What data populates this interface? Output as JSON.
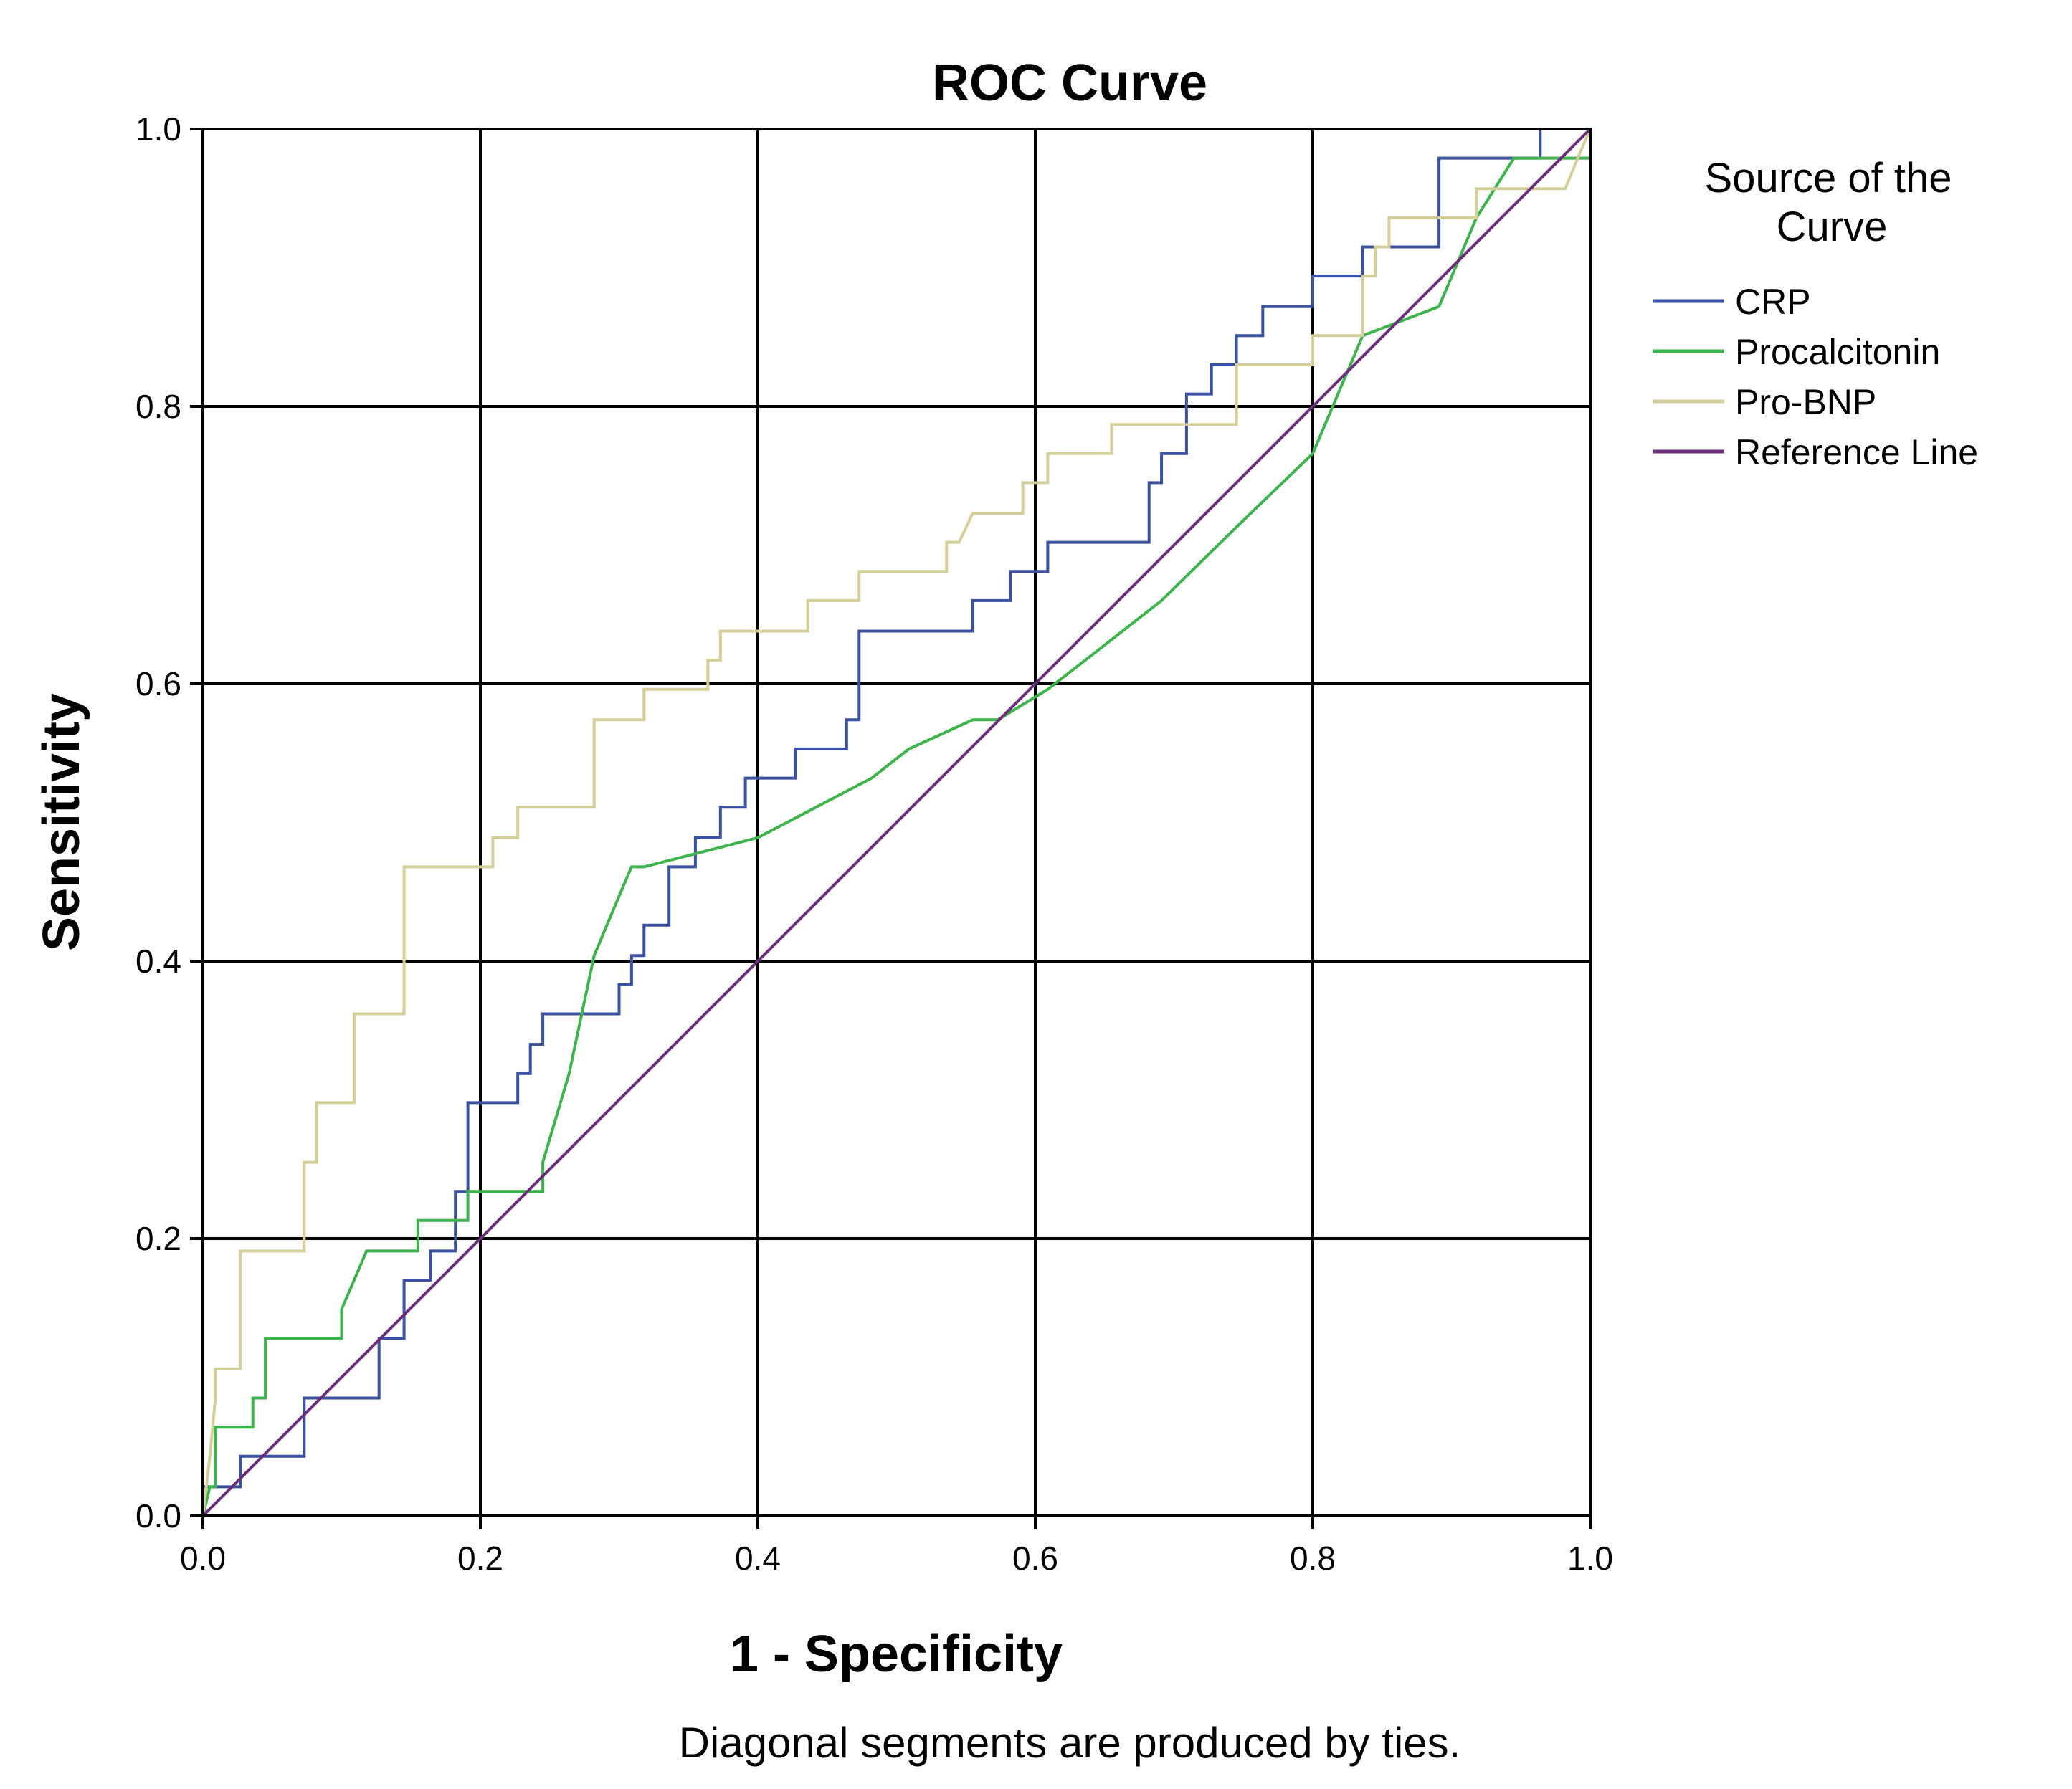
{
  "chart_data": {
    "type": "line",
    "title": "ROC Curve",
    "xlabel": "1 - Specificity",
    "ylabel": "Sensitivity",
    "xlim": [
      0.0,
      1.0
    ],
    "ylim": [
      0.0,
      1.0
    ],
    "xticks": [
      "0.0",
      "0.2",
      "0.4",
      "0.6",
      "0.8",
      "1.0"
    ],
    "yticks": [
      "0.0",
      "0.2",
      "0.4",
      "0.6",
      "0.8",
      "1.0"
    ],
    "grid": true,
    "legend": {
      "title": "Source of the Curve",
      "placement": "right"
    },
    "footnote": "Diagonal segments are produced by ties.",
    "series": [
      {
        "name": "CRP",
        "color": "#3b52a3",
        "points": [
          [
            0,
            0
          ],
          [
            0,
            0.021
          ],
          [
            0.027,
            0.021
          ],
          [
            0.027,
            0.043
          ],
          [
            0.073,
            0.043
          ],
          [
            0.073,
            0.085
          ],
          [
            0.127,
            0.085
          ],
          [
            0.127,
            0.128
          ],
          [
            0.145,
            0.128
          ],
          [
            0.145,
            0.17
          ],
          [
            0.164,
            0.17
          ],
          [
            0.164,
            0.191
          ],
          [
            0.182,
            0.191
          ],
          [
            0.182,
            0.234
          ],
          [
            0.191,
            0.234
          ],
          [
            0.191,
            0.298
          ],
          [
            0.227,
            0.298
          ],
          [
            0.227,
            0.319
          ],
          [
            0.236,
            0.319
          ],
          [
            0.236,
            0.34
          ],
          [
            0.245,
            0.34
          ],
          [
            0.245,
            0.362
          ],
          [
            0.3,
            0.362
          ],
          [
            0.3,
            0.383
          ],
          [
            0.309,
            0.383
          ],
          [
            0.309,
            0.404
          ],
          [
            0.318,
            0.404
          ],
          [
            0.318,
            0.426
          ],
          [
            0.336,
            0.426
          ],
          [
            0.336,
            0.468
          ],
          [
            0.355,
            0.468
          ],
          [
            0.355,
            0.489
          ],
          [
            0.373,
            0.489
          ],
          [
            0.373,
            0.511
          ],
          [
            0.391,
            0.511
          ],
          [
            0.391,
            0.532
          ],
          [
            0.427,
            0.532
          ],
          [
            0.427,
            0.553
          ],
          [
            0.464,
            0.553
          ],
          [
            0.464,
            0.574
          ],
          [
            0.473,
            0.574
          ],
          [
            0.473,
            0.638
          ],
          [
            0.555,
            0.638
          ],
          [
            0.555,
            0.66
          ],
          [
            0.582,
            0.66
          ],
          [
            0.582,
            0.681
          ],
          [
            0.609,
            0.681
          ],
          [
            0.609,
            0.702
          ],
          [
            0.682,
            0.702
          ],
          [
            0.682,
            0.745
          ],
          [
            0.691,
            0.745
          ],
          [
            0.691,
            0.766
          ],
          [
            0.709,
            0.766
          ],
          [
            0.709,
            0.809
          ],
          [
            0.727,
            0.809
          ],
          [
            0.727,
            0.83
          ],
          [
            0.745,
            0.83
          ],
          [
            0.745,
            0.851
          ],
          [
            0.764,
            0.851
          ],
          [
            0.764,
            0.872
          ],
          [
            0.8,
            0.872
          ],
          [
            0.8,
            0.894
          ],
          [
            0.836,
            0.894
          ],
          [
            0.836,
            0.915
          ],
          [
            0.855,
            0.915
          ],
          [
            0.855,
            0.915
          ],
          [
            0.891,
            0.915
          ],
          [
            0.891,
            0.979
          ],
          [
            0.964,
            0.979
          ],
          [
            0.964,
            1.0
          ],
          [
            1.0,
            1.0
          ]
        ]
      },
      {
        "name": "Procalcitonin",
        "color": "#3cb44b",
        "points": [
          [
            0,
            0
          ],
          [
            0.005,
            0.021
          ],
          [
            0.009,
            0.021
          ],
          [
            0.009,
            0.064
          ],
          [
            0.036,
            0.064
          ],
          [
            0.036,
            0.085
          ],
          [
            0.045,
            0.085
          ],
          [
            0.045,
            0.128
          ],
          [
            0.1,
            0.128
          ],
          [
            0.1,
            0.149
          ],
          [
            0.118,
            0.191
          ],
          [
            0.155,
            0.191
          ],
          [
            0.155,
            0.213
          ],
          [
            0.191,
            0.213
          ],
          [
            0.191,
            0.234
          ],
          [
            0.245,
            0.234
          ],
          [
            0.245,
            0.255
          ],
          [
            0.264,
            0.319
          ],
          [
            0.282,
            0.404
          ],
          [
            0.3,
            0.447
          ],
          [
            0.309,
            0.468
          ],
          [
            0.318,
            0.468
          ],
          [
            0.4,
            0.489
          ],
          [
            0.482,
            0.532
          ],
          [
            0.509,
            0.553
          ],
          [
            0.555,
            0.574
          ],
          [
            0.573,
            0.574
          ],
          [
            0.609,
            0.596
          ],
          [
            0.636,
            0.617
          ],
          [
            0.691,
            0.66
          ],
          [
            0.745,
            0.713
          ],
          [
            0.8,
            0.766
          ],
          [
            0.836,
            0.851
          ],
          [
            0.891,
            0.872
          ],
          [
            0.918,
            0.936
          ],
          [
            0.945,
            0.979
          ],
          [
            1.0,
            0.979
          ]
        ]
      },
      {
        "name": "Pro-BNP",
        "color": "#d4cf98",
        "points": [
          [
            0,
            0
          ],
          [
            0.005,
            0.043
          ],
          [
            0.009,
            0.085
          ],
          [
            0.009,
            0.106
          ],
          [
            0.027,
            0.106
          ],
          [
            0.027,
            0.191
          ],
          [
            0.073,
            0.191
          ],
          [
            0.073,
            0.255
          ],
          [
            0.082,
            0.255
          ],
          [
            0.082,
            0.298
          ],
          [
            0.109,
            0.298
          ],
          [
            0.109,
            0.362
          ],
          [
            0.145,
            0.362
          ],
          [
            0.145,
            0.468
          ],
          [
            0.209,
            0.468
          ],
          [
            0.209,
            0.489
          ],
          [
            0.227,
            0.489
          ],
          [
            0.227,
            0.511
          ],
          [
            0.282,
            0.511
          ],
          [
            0.282,
            0.574
          ],
          [
            0.318,
            0.574
          ],
          [
            0.318,
            0.596
          ],
          [
            0.364,
            0.596
          ],
          [
            0.364,
            0.617
          ],
          [
            0.373,
            0.617
          ],
          [
            0.373,
            0.638
          ],
          [
            0.436,
            0.638
          ],
          [
            0.436,
            0.66
          ],
          [
            0.473,
            0.66
          ],
          [
            0.473,
            0.681
          ],
          [
            0.536,
            0.681
          ],
          [
            0.536,
            0.702
          ],
          [
            0.545,
            0.702
          ],
          [
            0.555,
            0.723
          ],
          [
            0.591,
            0.723
          ],
          [
            0.591,
            0.745
          ],
          [
            0.609,
            0.745
          ],
          [
            0.609,
            0.766
          ],
          [
            0.655,
            0.766
          ],
          [
            0.655,
            0.787
          ],
          [
            0.745,
            0.787
          ],
          [
            0.745,
            0.83
          ],
          [
            0.8,
            0.83
          ],
          [
            0.8,
            0.851
          ],
          [
            0.836,
            0.851
          ],
          [
            0.836,
            0.894
          ],
          [
            0.845,
            0.894
          ],
          [
            0.845,
            0.915
          ],
          [
            0.855,
            0.915
          ],
          [
            0.855,
            0.936
          ],
          [
            0.918,
            0.936
          ],
          [
            0.918,
            0.957
          ],
          [
            0.945,
            0.957
          ],
          [
            0.945,
            0.957
          ],
          [
            0.982,
            0.957
          ],
          [
            0.991,
            0.979
          ],
          [
            1.0,
            1.0
          ]
        ]
      },
      {
        "name": "Reference Line",
        "color": "#6b2c7a",
        "points": [
          [
            0,
            0
          ],
          [
            1,
            1
          ]
        ]
      }
    ]
  }
}
